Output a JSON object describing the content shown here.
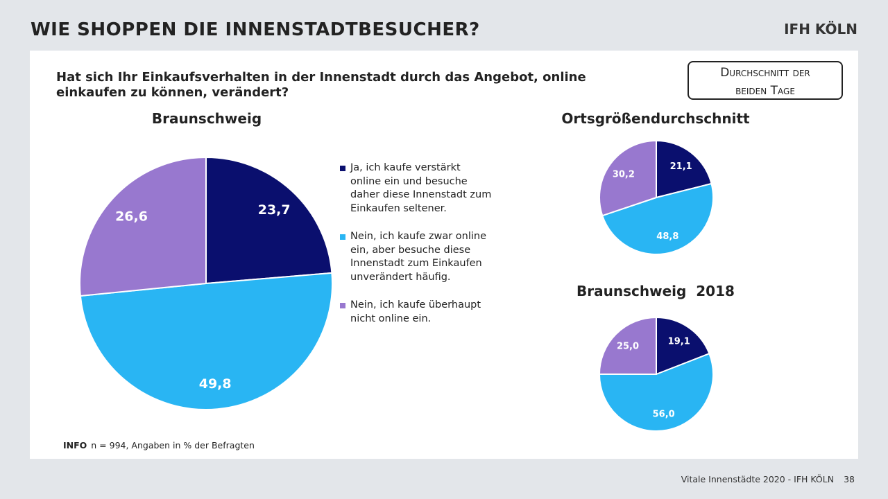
{
  "slide": {
    "title": "WIE SHOPPEN DIE INNENSTADTBESUCHER?",
    "logo": "IFH KÖLN",
    "question": "Hat sich Ihr Einkaufsverhalten in der Innenstadt durch das Angebot, online einkaufen zu können, verändert?",
    "avg_box_line1": "Durchschnitt der",
    "avg_box_line2": "beiden Tage",
    "info_label": "INFO",
    "info_text": "n = 994, Angaben in % der Befragten",
    "footer_text": "Vitale Innenstädte 2020 - IFH KÖLN",
    "page_number": "38"
  },
  "legend": [
    {
      "label": "Ja, ich kaufe verstärkt online ein und besuche daher diese Innenstadt zum Einkaufen seltener.",
      "color": "#0a0f6e"
    },
    {
      "label": "Nein, ich kaufe zwar online ein, aber besuche diese Innenstadt zum Einkaufen unverändert häufig.",
      "color": "#29b5f3"
    },
    {
      "label": "Nein, ich kaufe überhaupt nicht online ein.",
      "color": "#9878cf"
    }
  ],
  "chart_data": [
    {
      "type": "pie",
      "title": "Braunschweig",
      "categories": [
        "Ja, ich kaufe verstärkt online ein und besuche daher diese Innenstadt zum Einkaufen seltener.",
        "Nein, ich kaufe zwar online ein, aber besuche diese Innenstadt zum Einkaufen unverändert häufig.",
        "Nein, ich kaufe überhaupt nicht online ein."
      ],
      "values": [
        23.7,
        49.8,
        26.6
      ],
      "labels": [
        "23,7",
        "49,8",
        "26,6"
      ],
      "colors": [
        "#0a0f6e",
        "#29b5f3",
        "#9878cf"
      ]
    },
    {
      "type": "pie",
      "title": "Ortsgrößendurchschnitt",
      "categories": [
        "Ja, ich kaufe verstärkt online ein und besuche daher diese Innenstadt zum Einkaufen seltener.",
        "Nein, ich kaufe zwar online ein, aber besuche diese Innenstadt zum Einkaufen unverändert häufig.",
        "Nein, ich kaufe überhaupt nicht online ein."
      ],
      "values": [
        21.1,
        48.8,
        30.2
      ],
      "labels": [
        "21,1",
        "48,8",
        "30,2"
      ],
      "colors": [
        "#0a0f6e",
        "#29b5f3",
        "#9878cf"
      ]
    },
    {
      "type": "pie",
      "title": "Braunschweig  2018",
      "categories": [
        "Ja, ich kaufe verstärkt online ein und besuche daher diese Innenstadt zum Einkaufen seltener.",
        "Nein, ich kaufe zwar online ein, aber besuche diese Innenstadt zum Einkaufen unverändert häufig.",
        "Nein, ich kaufe überhaupt nicht online ein."
      ],
      "values": [
        19.1,
        56.0,
        25.0
      ],
      "labels": [
        "19,1",
        "56,0",
        "25,0"
      ],
      "colors": [
        "#0a0f6e",
        "#29b5f3",
        "#9878cf"
      ]
    }
  ]
}
